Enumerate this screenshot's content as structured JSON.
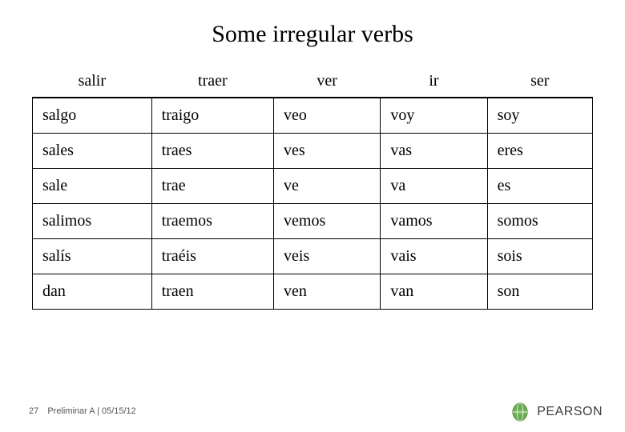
{
  "title": "Some irregular verbs",
  "table": {
    "headers": [
      "salir",
      "traer",
      "ver",
      "ir",
      "ser"
    ],
    "rows": [
      [
        {
          "pre": "sal",
          "hl": "go",
          "post": ""
        },
        {
          "pre": "tra",
          "hl": "igo",
          "post": ""
        },
        {
          "pre": "v",
          "hl": "eo",
          "post": ""
        },
        {
          "pre": "v",
          "hl": "oy",
          "post": ""
        },
        {
          "pre": "s",
          "hl": "oy",
          "post": ""
        }
      ],
      [
        {
          "pre": "sales",
          "hl": "",
          "post": ""
        },
        {
          "pre": "traes",
          "hl": "",
          "post": ""
        },
        {
          "pre": "ves",
          "hl": "",
          "post": ""
        },
        {
          "pre": "vas",
          "hl": "",
          "post": ""
        },
        {
          "pre": "eres",
          "hl": "",
          "post": ""
        }
      ],
      [
        {
          "pre": "sale",
          "hl": "",
          "post": ""
        },
        {
          "pre": "trae",
          "hl": "",
          "post": ""
        },
        {
          "pre": "ve",
          "hl": "",
          "post": ""
        },
        {
          "pre": "va",
          "hl": "",
          "post": ""
        },
        {
          "pre": "es",
          "hl": "",
          "post": ""
        }
      ],
      [
        {
          "pre": "salimos",
          "hl": "",
          "post": ""
        },
        {
          "pre": "traemos",
          "hl": "",
          "post": ""
        },
        {
          "pre": "vemos",
          "hl": "",
          "post": ""
        },
        {
          "pre": "vamos",
          "hl": "",
          "post": ""
        },
        {
          "pre": "somos",
          "hl": "",
          "post": ""
        }
      ],
      [
        {
          "pre": "salís",
          "hl": "",
          "post": ""
        },
        {
          "pre": "traéis",
          "hl": "",
          "post": ""
        },
        {
          "pre": "veis",
          "hl": "",
          "post": ""
        },
        {
          "pre": "vais",
          "hl": "",
          "post": ""
        },
        {
          "pre": "sois",
          "hl": "",
          "post": ""
        }
      ],
      [
        {
          "pre": "dan",
          "hl": "",
          "post": ""
        },
        {
          "pre": "traen",
          "hl": "",
          "post": ""
        },
        {
          "pre": "ven",
          "hl": "",
          "post": ""
        },
        {
          "pre": "van",
          "hl": "",
          "post": ""
        },
        {
          "pre": "son",
          "hl": "",
          "post": ""
        }
      ]
    ]
  },
  "footer": {
    "page": "27",
    "text": "Preliminar A  |  05/15/12"
  },
  "logo": {
    "text": "PEARSON",
    "colors": {
      "bg": "#f6f6f4",
      "globe_fill": "#6aa94e",
      "globe_dark": "#3e7e2c",
      "text": "#3a3c40"
    }
  },
  "highlight_color": "#000000"
}
